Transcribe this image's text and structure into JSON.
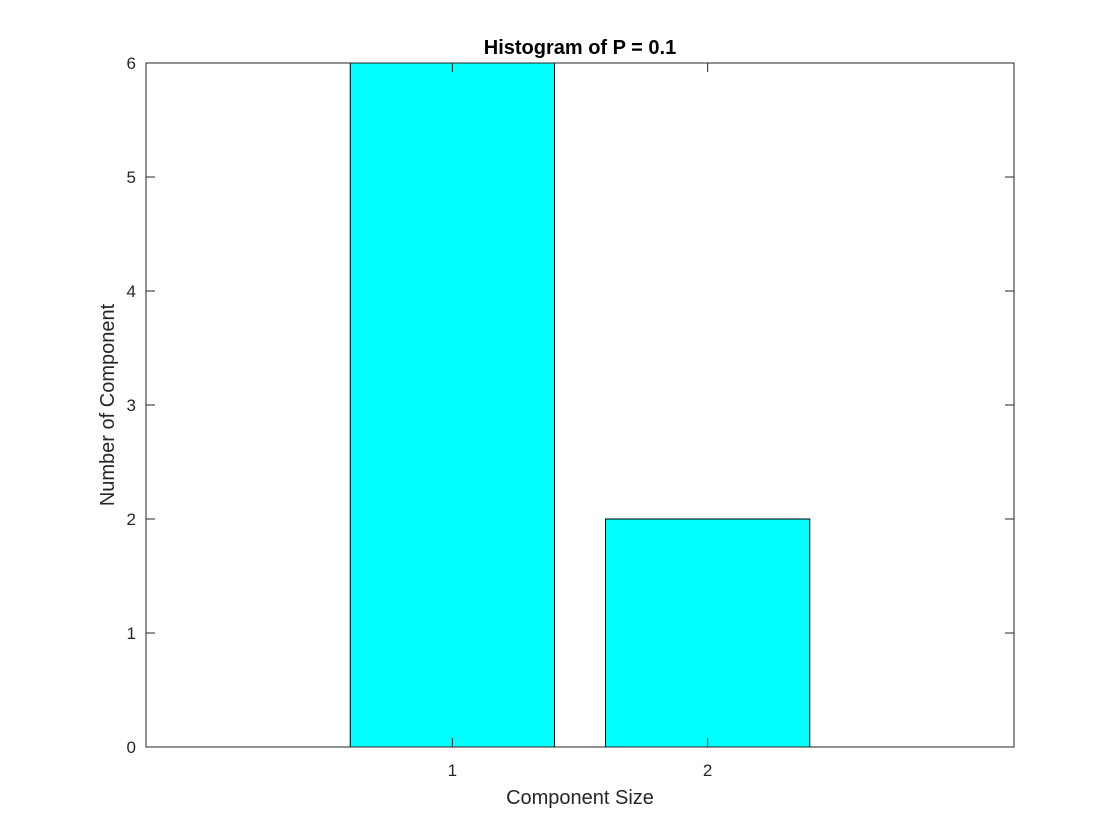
{
  "chart_data": {
    "type": "bar",
    "title": "Histogram of P = 0.1",
    "xlabel": "Component Size",
    "ylabel": "Number of Component",
    "categories": [
      "1",
      "2"
    ],
    "x": [
      1,
      2
    ],
    "values": [
      6,
      2
    ],
    "xlim": [
      -0.2,
      3.2
    ],
    "ylim": [
      0,
      6
    ],
    "yticks": [
      "0",
      "1",
      "2",
      "3",
      "4",
      "5",
      "6"
    ],
    "xticks": [
      "1",
      "2"
    ],
    "bar_color": "#00ffff",
    "edge_color": "#000000",
    "grid": false,
    "legend": "none"
  }
}
